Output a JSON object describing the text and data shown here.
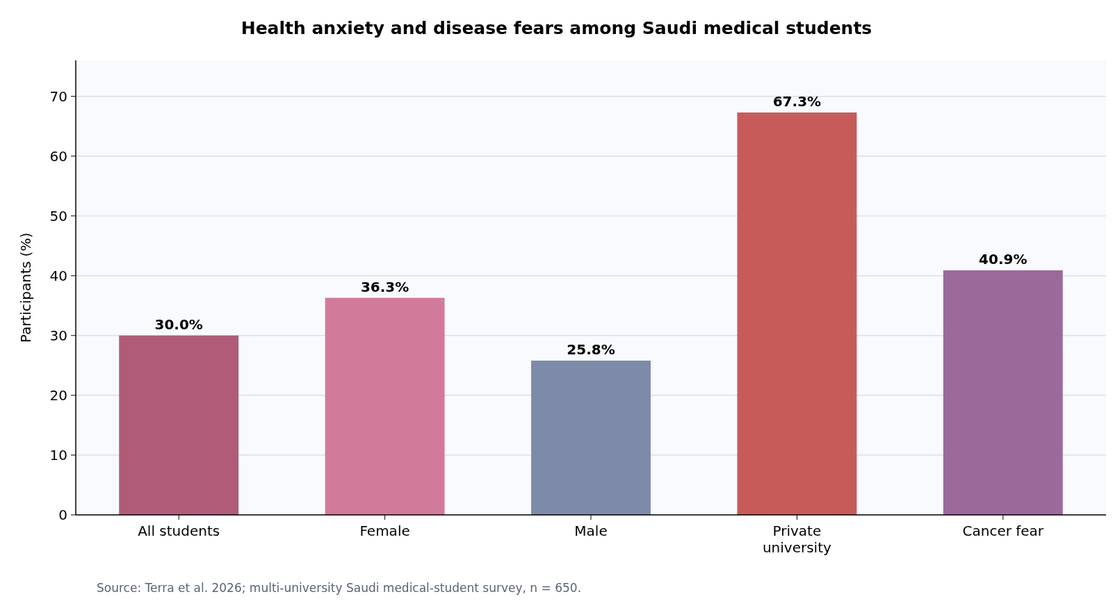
{
  "chart_data": {
    "type": "bar",
    "title": "Health anxiety and disease fears among Saudi medical students",
    "ylabel": "Participants (%)",
    "categories": [
      "All students",
      "Female",
      "Male",
      "Private\nuniversity",
      "Cancer fear"
    ],
    "values": [
      30.0,
      36.3,
      25.8,
      67.3,
      40.9
    ],
    "colors": [
      "#b05c78",
      "#d27a99",
      "#7d8ba8",
      "#c75b5a",
      "#9b6a9a"
    ],
    "value_labels": [
      "30.0%",
      "36.3%",
      "25.8%",
      "67.3%",
      "40.9%"
    ],
    "ylim": [
      0,
      76
    ],
    "yticks": [
      0,
      10,
      20,
      30,
      40,
      50,
      60,
      70
    ],
    "grid": "y",
    "annotations": [
      "Source: Terra et al. 2026; multi-university Saudi medical-student survey, n = 650."
    ]
  }
}
